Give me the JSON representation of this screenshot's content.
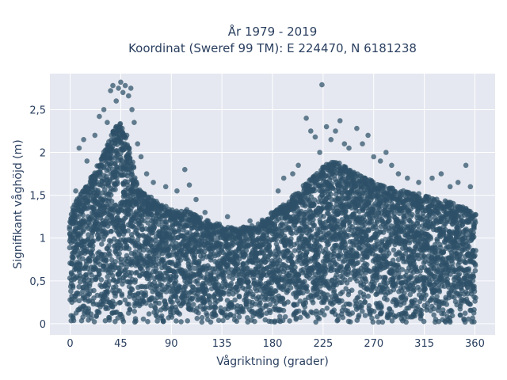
{
  "chart_data": {
    "type": "scatter",
    "title_line1": "År 1979 - 2019",
    "title_line2": "Koordinat (Sweref 99 TM): E 224470, N 6181238",
    "xlabel": "Vågriktning (grader)",
    "ylabel": "Signifikant våghöjd (m)",
    "xlim": [
      -18,
      378
    ],
    "ylim": [
      -0.13,
      2.92
    ],
    "x_ticks": [
      0,
      45,
      90,
      135,
      180,
      225,
      270,
      315,
      360
    ],
    "x_tick_labels": [
      "0",
      "45",
      "90",
      "135",
      "180",
      "225",
      "270",
      "315",
      "360"
    ],
    "y_ticks": [
      0,
      0.5,
      1,
      1.5,
      2,
      2.5
    ],
    "y_tick_labels": [
      "0",
      "0,5",
      "1",
      "1,5",
      "2",
      "2,5"
    ],
    "marker_color": "#2e5068",
    "plot_bg": "#e5e8f0",
    "grid": true,
    "envelope": {
      "x": [
        0,
        10,
        20,
        30,
        40,
        45,
        50,
        60,
        70,
        80,
        90,
        100,
        110,
        120,
        135,
        150,
        165,
        180,
        195,
        210,
        225,
        235,
        250,
        265,
        280,
        300,
        315,
        330,
        345,
        360
      ],
      "y_max": [
        1.3,
        1.55,
        1.75,
        2.05,
        2.3,
        2.35,
        2.25,
        1.6,
        1.5,
        1.4,
        1.35,
        1.35,
        1.3,
        1.22,
        1.15,
        1.12,
        1.15,
        1.3,
        1.45,
        1.65,
        1.85,
        1.9,
        1.8,
        1.7,
        1.6,
        1.55,
        1.5,
        1.45,
        1.4,
        1.3
      ]
    },
    "outliers": [
      {
        "x": 5,
        "y": 1.55
      },
      {
        "x": 8,
        "y": 2.05
      },
      {
        "x": 12,
        "y": 2.15
      },
      {
        "x": 15,
        "y": 1.9
      },
      {
        "x": 22,
        "y": 2.2
      },
      {
        "x": 26,
        "y": 2.42
      },
      {
        "x": 30,
        "y": 2.5
      },
      {
        "x": 33,
        "y": 2.35
      },
      {
        "x": 36,
        "y": 2.72
      },
      {
        "x": 38,
        "y": 2.78
      },
      {
        "x": 41,
        "y": 2.6
      },
      {
        "x": 43,
        "y": 2.75
      },
      {
        "x": 45,
        "y": 2.82
      },
      {
        "x": 47,
        "y": 2.7
      },
      {
        "x": 49,
        "y": 2.78
      },
      {
        "x": 52,
        "y": 2.66
      },
      {
        "x": 54,
        "y": 2.75
      },
      {
        "x": 55,
        "y": 2.5
      },
      {
        "x": 57,
        "y": 2.35
      },
      {
        "x": 60,
        "y": 2.1
      },
      {
        "x": 63,
        "y": 1.95
      },
      {
        "x": 68,
        "y": 1.75
      },
      {
        "x": 74,
        "y": 1.65
      },
      {
        "x": 85,
        "y": 1.6
      },
      {
        "x": 95,
        "y": 1.55
      },
      {
        "x": 102,
        "y": 1.8
      },
      {
        "x": 106,
        "y": 1.62
      },
      {
        "x": 112,
        "y": 1.45
      },
      {
        "x": 120,
        "y": 1.3
      },
      {
        "x": 140,
        "y": 1.25
      },
      {
        "x": 160,
        "y": 1.2
      },
      {
        "x": 185,
        "y": 1.55
      },
      {
        "x": 190,
        "y": 1.7
      },
      {
        "x": 198,
        "y": 1.75
      },
      {
        "x": 203,
        "y": 1.85
      },
      {
        "x": 210,
        "y": 2.4
      },
      {
        "x": 214,
        "y": 2.25
      },
      {
        "x": 218,
        "y": 2.18
      },
      {
        "x": 222,
        "y": 2.0
      },
      {
        "x": 224,
        "y": 2.79
      },
      {
        "x": 228,
        "y": 2.3
      },
      {
        "x": 232,
        "y": 2.15
      },
      {
        "x": 236,
        "y": 2.25
      },
      {
        "x": 240,
        "y": 2.37
      },
      {
        "x": 244,
        "y": 2.1
      },
      {
        "x": 248,
        "y": 2.05
      },
      {
        "x": 255,
        "y": 2.28
      },
      {
        "x": 260,
        "y": 2.1
      },
      {
        "x": 265,
        "y": 2.2
      },
      {
        "x": 270,
        "y": 1.95
      },
      {
        "x": 276,
        "y": 1.9
      },
      {
        "x": 281,
        "y": 2.0
      },
      {
        "x": 286,
        "y": 1.85
      },
      {
        "x": 292,
        "y": 1.75
      },
      {
        "x": 300,
        "y": 1.7
      },
      {
        "x": 310,
        "y": 1.65
      },
      {
        "x": 322,
        "y": 1.7
      },
      {
        "x": 330,
        "y": 1.75
      },
      {
        "x": 338,
        "y": 1.6
      },
      {
        "x": 345,
        "y": 1.65
      },
      {
        "x": 352,
        "y": 1.85
      },
      {
        "x": 356,
        "y": 1.6
      }
    ]
  }
}
